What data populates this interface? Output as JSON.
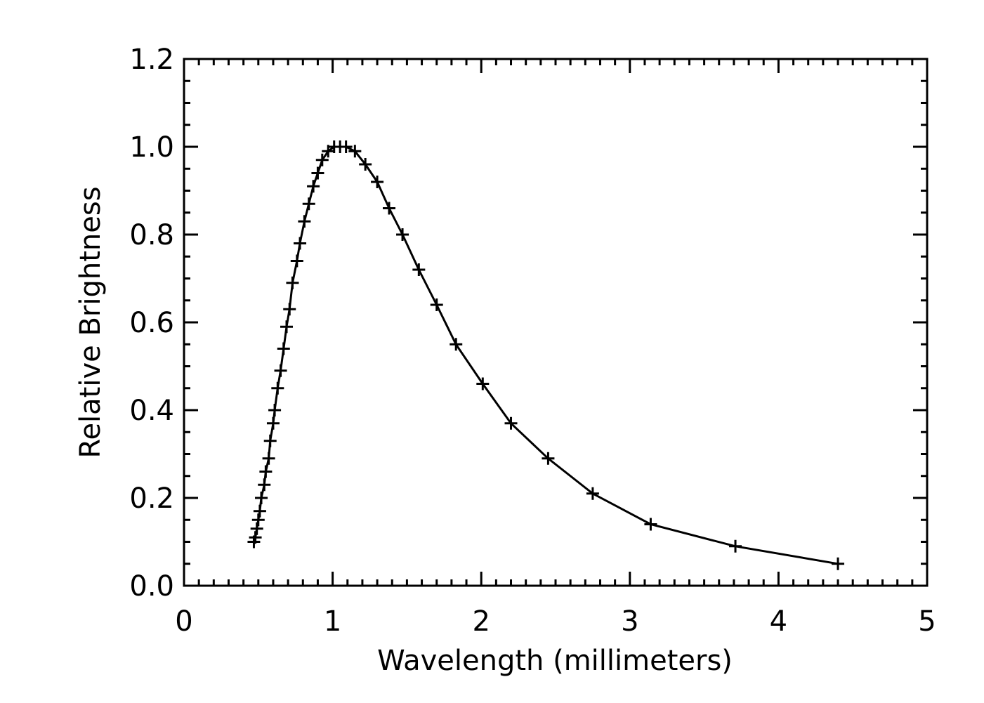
{
  "chart_data": {
    "type": "line",
    "title": "",
    "xlabel": "Wavelength (millimeters)",
    "ylabel": "Relative Brightness",
    "xlim": [
      0,
      5
    ],
    "ylim": [
      0,
      1.2
    ],
    "x_ticks": [
      "0",
      "1",
      "2",
      "3",
      "4",
      "5"
    ],
    "y_ticks": [
      "0.0",
      "0.2",
      "0.4",
      "0.6",
      "0.8",
      "1.0",
      "1.2"
    ],
    "grid": false,
    "marker": "plus",
    "line_color": "#000000",
    "series": [
      {
        "x": [
          0.47,
          0.48,
          0.49,
          0.5,
          0.51,
          0.52,
          0.54,
          0.55,
          0.57,
          0.58,
          0.6,
          0.61,
          0.63,
          0.65,
          0.67,
          0.69,
          0.71,
          0.73,
          0.76,
          0.78,
          0.81,
          0.84,
          0.87,
          0.9,
          0.93,
          0.97,
          1.01,
          1.05,
          1.09,
          1.15,
          1.22,
          1.3,
          1.38,
          1.47,
          1.58,
          1.7,
          1.83,
          2.01,
          2.2,
          2.45,
          2.75,
          3.14,
          3.71,
          4.4
        ],
        "y": [
          0.1,
          0.11,
          0.13,
          0.15,
          0.17,
          0.2,
          0.23,
          0.26,
          0.29,
          0.33,
          0.37,
          0.4,
          0.45,
          0.49,
          0.54,
          0.59,
          0.63,
          0.69,
          0.74,
          0.78,
          0.83,
          0.87,
          0.91,
          0.94,
          0.97,
          0.99,
          1.0,
          1.0,
          1.0,
          0.99,
          0.96,
          0.92,
          0.86,
          0.8,
          0.72,
          0.64,
          0.55,
          0.46,
          0.37,
          0.29,
          0.21,
          0.14,
          0.09,
          0.05
        ]
      }
    ]
  }
}
